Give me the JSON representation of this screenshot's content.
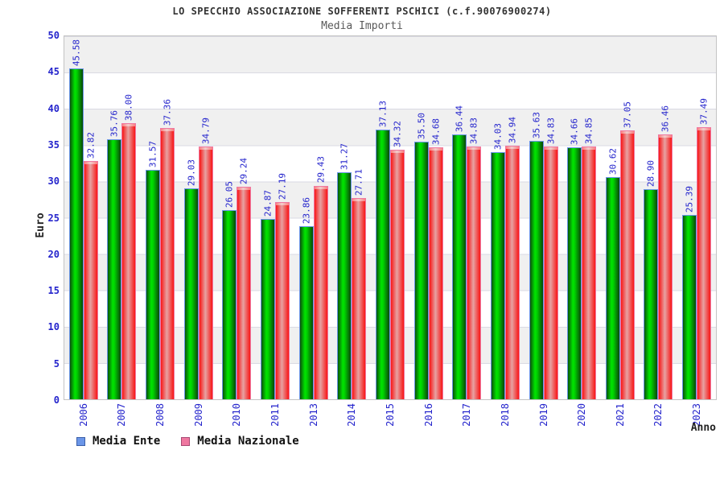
{
  "header": {
    "title": "LO SPECCHIO ASSOCIAZIONE SOFFERENTI PSCHICI (c.f.90076900274)",
    "subtitle": "Media Importi"
  },
  "axes": {
    "y_label": "Euro",
    "x_label": "Anno"
  },
  "legend": {
    "items": [
      {
        "label": "Media Ente",
        "color": "#6b96e8",
        "border": "#3c5fa8"
      },
      {
        "label": "Media Nazionale",
        "color": "#ef77a0",
        "border": "#a84a74"
      }
    ],
    "position": "bottom-left"
  },
  "colors": {
    "label_blue": "#2424cc",
    "band_gray": "#f0f0f0",
    "grid_line": "#dadae3",
    "plot_border": "#c3c3c3",
    "bar_green_mid": "#00e400",
    "bar_green_edge": "#0a520a",
    "bar_red_edge": "#f81616",
    "bar_red_mid": "#e7a2a2"
  },
  "chart_data": {
    "type": "bar",
    "title": "LO SPECCHIO ASSOCIAZIONE SOFFERENTI PSCHICI (c.f.90076900274)",
    "subtitle": "Media Importi",
    "xlabel": "Anno",
    "ylabel": "Euro",
    "ylim": [
      0,
      50
    ],
    "yticks": [
      0,
      5,
      10,
      15,
      20,
      25,
      30,
      35,
      40,
      45,
      50
    ],
    "grid": "horizontal gridlines with alternating gray/white bands every 5 units",
    "legend_position": "bottom-left",
    "categories": [
      "2006",
      "2007",
      "2008",
      "2009",
      "2010",
      "2011",
      "2013",
      "2014",
      "2015",
      "2016",
      "2017",
      "2018",
      "2019",
      "2020",
      "2021",
      "2022",
      "2023"
    ],
    "series": [
      {
        "name": "Media Ente",
        "values": [
          45.58,
          35.76,
          31.57,
          29.03,
          26.05,
          24.87,
          23.86,
          31.27,
          37.13,
          35.5,
          36.44,
          34.03,
          35.63,
          34.66,
          30.62,
          28.9,
          25.39
        ]
      },
      {
        "name": "Media Nazionale",
        "values": [
          32.82,
          38.0,
          37.36,
          34.79,
          29.24,
          27.19,
          29.43,
          27.71,
          34.32,
          34.68,
          34.83,
          34.94,
          34.83,
          34.85,
          37.05,
          36.46,
          37.49
        ]
      }
    ]
  }
}
